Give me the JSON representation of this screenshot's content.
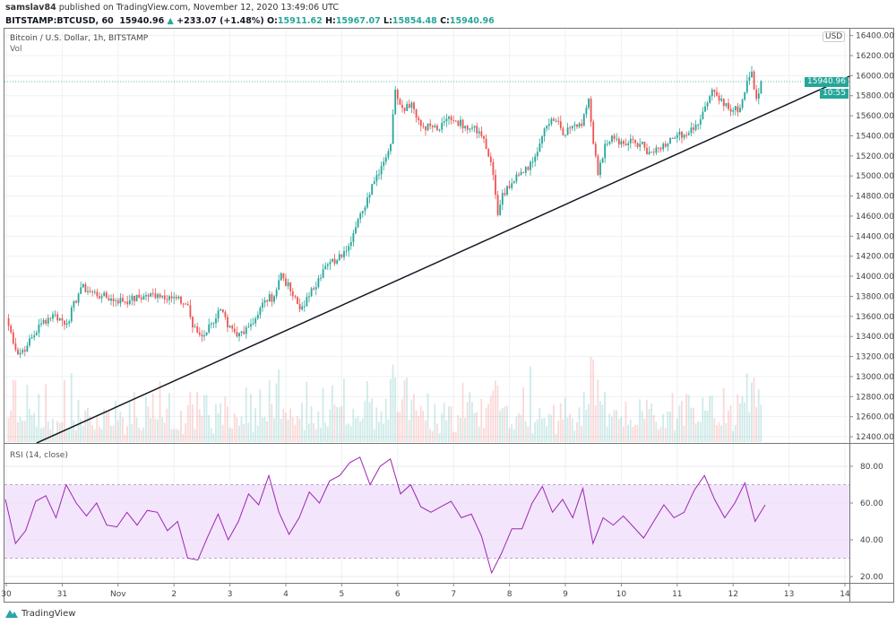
{
  "header": {
    "publisher": "samslav84",
    "published_text": "published on TradingView.com, November 12, 2020 13:49:06 UTC",
    "symbol": "BITSTAMP:BTCUSD, 60",
    "last": "15940.96",
    "change": "+233.07 (+1.48%)",
    "o_label": "O:",
    "o": "15911.62",
    "h_label": "H:",
    "h": "15967.07",
    "l_label": "L:",
    "l": "15854.48",
    "c_label": "C:",
    "c": "15940.96"
  },
  "pane": {
    "title": "Bitcoin / U.S. Dollar, 1h, BITSTAMP",
    "vol_label": "Vol",
    "rsi_label": "RSI (14, close)",
    "currency": "USD",
    "last_price_tag": "15940.96",
    "countdown_tag": "10:55"
  },
  "footer": {
    "brand": "TradingView"
  },
  "colors": {
    "up": "#26a69a",
    "down": "#ef5350",
    "rsi": "#9c27b0",
    "rsi_band": "#f3e5fc",
    "trendline": "#131722"
  },
  "chart_data": [
    {
      "type": "candlestick",
      "title": "Bitcoin / U.S. Dollar, 1h, BITSTAMP",
      "ylim": [
        12400,
        16400
      ],
      "y_ticks": [
        "16400.00",
        "16200.00",
        "16000.00",
        "15800.00",
        "15600.00",
        "15400.00",
        "15200.00",
        "15000.00",
        "14800.00",
        "14600.00",
        "14400.00",
        "14200.00",
        "14000.00",
        "13800.00",
        "13600.00",
        "13400.00",
        "13200.00",
        "13000.00",
        "12800.00",
        "12600.00",
        "12400.00"
      ],
      "x_ticks": [
        "30",
        "31",
        "Nov",
        "2",
        "3",
        "4",
        "5",
        "6",
        "7",
        "8",
        "9",
        "10",
        "11",
        "12",
        "13",
        "14"
      ],
      "grid": true,
      "closes": [
        [
          "2020-10-30T00:00",
          13580
        ],
        [
          "2020-10-30T05:00",
          13220
        ],
        [
          "2020-10-30T09:00",
          13310
        ],
        [
          "2020-10-30T15:00",
          13530
        ],
        [
          "2020-10-30T20:00",
          13620
        ],
        [
          "2020-10-31T02:00",
          13530
        ],
        [
          "2020-10-31T08:00",
          13890
        ],
        [
          "2020-10-31T12:00",
          13850
        ],
        [
          "2020-10-31T17:00",
          13800
        ],
        [
          "2020-10-31T23:00",
          13760
        ],
        [
          "2020-11-01T05:00",
          13760
        ],
        [
          "2020-11-01T11:00",
          13800
        ],
        [
          "2020-11-01T17:00",
          13820
        ],
        [
          "2020-11-01T22:00",
          13800
        ],
        [
          "2020-11-02T06:00",
          13710
        ],
        [
          "2020-11-02T08:00",
          13490
        ],
        [
          "2020-11-02T12:00",
          13400
        ],
        [
          "2020-11-02T16:00",
          13530
        ],
        [
          "2020-11-02T20:00",
          13670
        ],
        [
          "2020-11-02T23:00",
          13490
        ],
        [
          "2020-11-03T03:00",
          13400
        ],
        [
          "2020-11-03T07:00",
          13490
        ],
        [
          "2020-11-03T11:00",
          13580
        ],
        [
          "2020-11-03T15:00",
          13760
        ],
        [
          "2020-11-03T19:00",
          13800
        ],
        [
          "2020-11-03T22:00",
          14030
        ],
        [
          "2020-11-04T02:00",
          13850
        ],
        [
          "2020-11-04T06:00",
          13670
        ],
        [
          "2020-11-04T10:00",
          13800
        ],
        [
          "2020-11-04T14:00",
          13980
        ],
        [
          "2020-11-04T18:00",
          14120
        ],
        [
          "2020-11-04T22:00",
          14160
        ],
        [
          "2020-11-05T01:00",
          14250
        ],
        [
          "2020-11-05T05:00",
          14430
        ],
        [
          "2020-11-05T09:00",
          14650
        ],
        [
          "2020-11-05T13:00",
          14920
        ],
        [
          "2020-11-05T17:00",
          15100
        ],
        [
          "2020-11-05T21:00",
          15320
        ],
        [
          "2020-11-05T23:00",
          15860
        ],
        [
          "2020-11-06T02:00",
          15680
        ],
        [
          "2020-11-06T06:00",
          15730
        ],
        [
          "2020-11-06T10:00",
          15500
        ],
        [
          "2020-11-06T14:00",
          15500
        ],
        [
          "2020-11-06T18:00",
          15460
        ],
        [
          "2020-11-06T22:00",
          15590
        ],
        [
          "2020-11-07T01:00",
          15550
        ],
        [
          "2020-11-07T05:00",
          15500
        ],
        [
          "2020-11-07T09:00",
          15500
        ],
        [
          "2020-11-07T13:00",
          15370
        ],
        [
          "2020-11-07T17:00",
          15010
        ],
        [
          "2020-11-07T19:00",
          14610
        ],
        [
          "2020-11-07T21:00",
          14830
        ],
        [
          "2020-11-08T00:00",
          14880
        ],
        [
          "2020-11-08T04:00",
          15010
        ],
        [
          "2020-11-08T08:00",
          15060
        ],
        [
          "2020-11-08T12:00",
          15240
        ],
        [
          "2020-11-08T16:00",
          15500
        ],
        [
          "2020-11-08T20:00",
          15550
        ],
        [
          "2020-11-09T00:00",
          15410
        ],
        [
          "2020-11-09T03:00",
          15500
        ],
        [
          "2020-11-09T07:00",
          15500
        ],
        [
          "2020-11-09T10:00",
          15770
        ],
        [
          "2020-11-09T12:00",
          15320
        ],
        [
          "2020-11-09T14:00",
          15010
        ],
        [
          "2020-11-09T17:00",
          15320
        ],
        [
          "2020-11-09T21:00",
          15370
        ],
        [
          "2020-11-10T01:00",
          15320
        ],
        [
          "2020-11-10T04:00",
          15370
        ],
        [
          "2020-11-10T08:00",
          15320
        ],
        [
          "2020-11-10T12:00",
          15240
        ],
        [
          "2020-11-10T16:00",
          15280
        ],
        [
          "2020-11-10T20:00",
          15320
        ],
        [
          "2020-11-11T00:00",
          15410
        ],
        [
          "2020-11-11T03:00",
          15410
        ],
        [
          "2020-11-11T07:00",
          15460
        ],
        [
          "2020-11-11T11:00",
          15640
        ],
        [
          "2020-11-11T15:00",
          15860
        ],
        [
          "2020-11-11T19:00",
          15770
        ],
        [
          "2020-11-11T23:00",
          15640
        ],
        [
          "2020-11-12T03:00",
          15680
        ],
        [
          "2020-11-12T06:00",
          15950
        ],
        [
          "2020-11-12T08:00",
          16040
        ],
        [
          "2020-11-12T10:00",
          15770
        ],
        [
          "2020-11-12T12:00",
          15940.96
        ]
      ],
      "trendline": {
        "start": [
          "2020-10-30T13:00",
          12337
        ],
        "end": [
          "2020-11-14T02:00",
          15994
        ]
      },
      "last_price": 15940.96
    },
    {
      "type": "line",
      "title": "RSI (14, close)",
      "ylim": [
        15,
        90
      ],
      "y_ticks": [
        "80.00",
        "60.00",
        "40.00",
        "20.00"
      ],
      "band": [
        30,
        70
      ],
      "midline": 50,
      "values": [
        62,
        38,
        45,
        61,
        64,
        52,
        70,
        60,
        53,
        60,
        48,
        47,
        55,
        48,
        56,
        55,
        45,
        50,
        30,
        29,
        42,
        54,
        40,
        50,
        65,
        59,
        75,
        55,
        43,
        52,
        66,
        60,
        72,
        75,
        82,
        85,
        70,
        80,
        84,
        65,
        70,
        58,
        55,
        58,
        61,
        52,
        54,
        42,
        22,
        33,
        46,
        46,
        60,
        69,
        55,
        62,
        52,
        68,
        38,
        52,
        48,
        53,
        47,
        41,
        50,
        59,
        52,
        55,
        67,
        75,
        62,
        52,
        60,
        71,
        50,
        59
      ]
    }
  ]
}
